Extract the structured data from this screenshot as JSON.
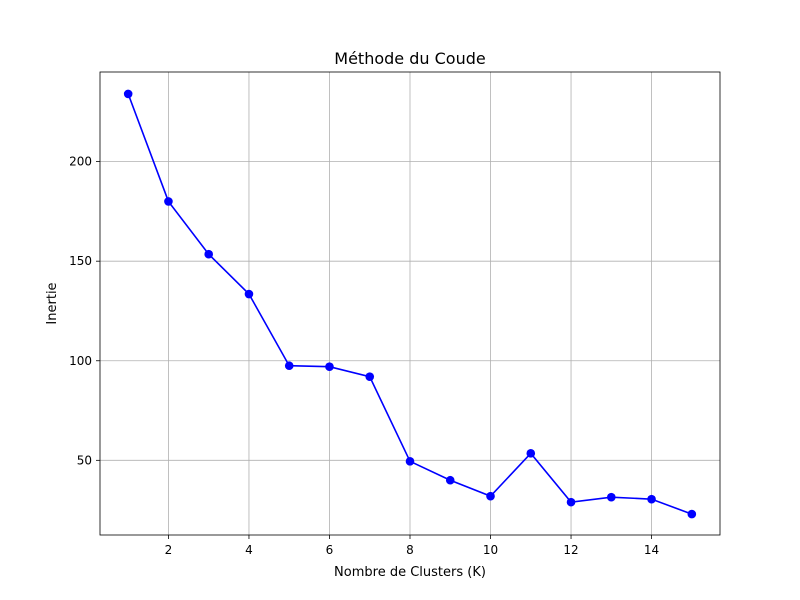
{
  "chart_data": {
    "type": "line",
    "title": "Méthode du Coude",
    "xlabel": "Nombre de Clusters (K)",
    "ylabel": "Inertie",
    "xlim": [
      0.3,
      15.7
    ],
    "ylim": [
      12.5,
      245
    ],
    "xticks": [
      2,
      4,
      6,
      8,
      10,
      12,
      14
    ],
    "yticks": [
      50,
      100,
      150,
      200
    ],
    "grid": true,
    "series": [
      {
        "color": "#0000ff",
        "x": [
          1,
          2,
          3,
          4,
          5,
          6,
          7,
          8,
          9,
          10,
          11,
          12,
          13,
          14,
          15
        ],
        "y": [
          234,
          180,
          153.5,
          133.5,
          97.5,
          97,
          92,
          49.5,
          40,
          32,
          53.5,
          29,
          31.5,
          30.5,
          23
        ]
      }
    ]
  }
}
